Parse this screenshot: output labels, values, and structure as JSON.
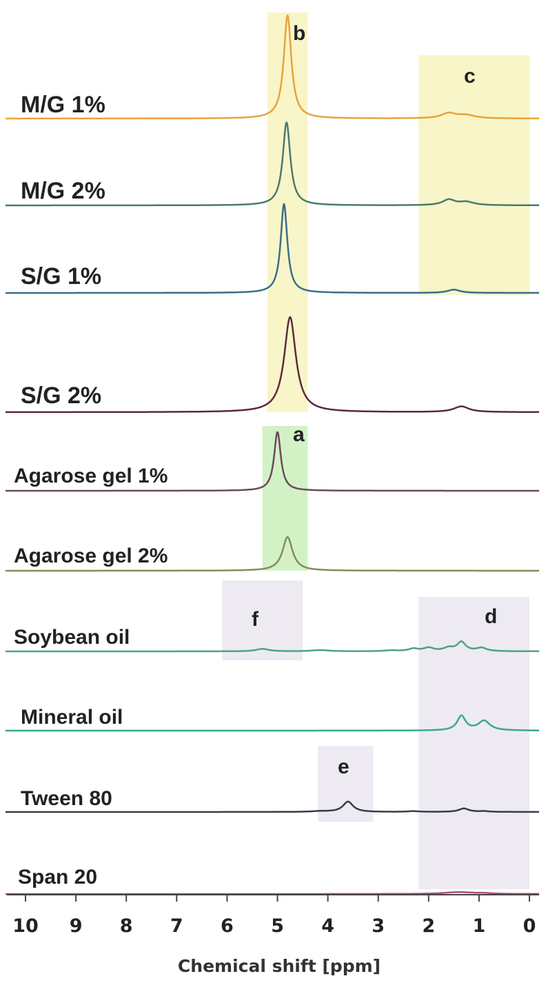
{
  "chart_data": {
    "type": "line",
    "xlabel": "Chemical shift [ppm]",
    "xlim": [
      10,
      0
    ],
    "x_reversed": true,
    "x_ticks": [
      "10",
      "9",
      "8",
      "7",
      "6",
      "5",
      "4",
      "3",
      "2",
      "1",
      "0"
    ],
    "grid": false,
    "series": [
      {
        "name": "M/G 1%",
        "color": "#E8A33A",
        "peaks": [
          {
            "ppm": 4.8,
            "height": 1.0,
            "width": 0.09
          },
          {
            "ppm": 1.6,
            "height": 0.05,
            "width": 0.18
          },
          {
            "ppm": 1.25,
            "height": 0.03,
            "width": 0.2
          }
        ]
      },
      {
        "name": "M/G 2%",
        "color": "#4A7A6E",
        "peaks": [
          {
            "ppm": 4.82,
            "height": 0.9,
            "width": 0.09
          },
          {
            "ppm": 1.6,
            "height": 0.06,
            "width": 0.15
          },
          {
            "ppm": 1.25,
            "height": 0.035,
            "width": 0.18
          }
        ]
      },
      {
        "name": "S/G 1%",
        "color": "#3A6E88",
        "peaks": [
          {
            "ppm": 4.87,
            "height": 0.95,
            "width": 0.08
          },
          {
            "ppm": 1.5,
            "height": 0.035,
            "width": 0.15
          }
        ]
      },
      {
        "name": "S/G 2%",
        "color": "#5A2A3A",
        "peaks": [
          {
            "ppm": 4.75,
            "height": 1.0,
            "width": 0.14
          },
          {
            "ppm": 1.35,
            "height": 0.06,
            "width": 0.18
          }
        ]
      },
      {
        "name": "Agarose gel 1%",
        "color": "#6A4A5A",
        "peaks": [
          {
            "ppm": 5.0,
            "height": 0.95,
            "width": 0.08
          }
        ]
      },
      {
        "name": "Agarose gel 2%",
        "color": "#8A8A5A",
        "peaks": [
          {
            "ppm": 4.8,
            "height": 0.7,
            "width": 0.12
          }
        ]
      },
      {
        "name": "Soybean oil",
        "color": "#4EA47A",
        "peaks": [
          {
            "ppm": 5.3,
            "height": 0.06,
            "width": 0.15
          },
          {
            "ppm": 4.15,
            "height": 0.03,
            "width": 0.2
          },
          {
            "ppm": 2.75,
            "height": 0.02,
            "width": 0.15
          },
          {
            "ppm": 2.3,
            "height": 0.06,
            "width": 0.12
          },
          {
            "ppm": 2.0,
            "height": 0.08,
            "width": 0.12
          },
          {
            "ppm": 1.6,
            "height": 0.08,
            "width": 0.12
          },
          {
            "ppm": 1.35,
            "height": 0.22,
            "width": 0.1
          },
          {
            "ppm": 0.95,
            "height": 0.08,
            "width": 0.12
          }
        ]
      },
      {
        "name": "Mineral oil",
        "color": "#3AA890",
        "peaks": [
          {
            "ppm": 1.35,
            "height": 0.3,
            "width": 0.1
          },
          {
            "ppm": 0.9,
            "height": 0.2,
            "width": 0.14
          }
        ]
      },
      {
        "name": "Tween 80",
        "color": "#3A3A4A",
        "peaks": [
          {
            "ppm": 3.6,
            "height": 0.3,
            "width": 0.12
          },
          {
            "ppm": 4.15,
            "height": 0.02,
            "width": 0.2
          },
          {
            "ppm": 2.3,
            "height": 0.02,
            "width": 0.15
          },
          {
            "ppm": 1.3,
            "height": 0.1,
            "width": 0.12
          },
          {
            "ppm": 0.9,
            "height": 0.02,
            "width": 0.12
          }
        ]
      },
      {
        "name": "Span 20",
        "color": "#B04A7A",
        "peaks": [
          {
            "ppm": 1.4,
            "height": 0.06,
            "width": 0.35
          },
          {
            "ppm": 0.9,
            "height": 0.02,
            "width": 0.2
          }
        ]
      }
    ],
    "highlight_regions": [
      {
        "label": "b",
        "ppm_range": [
          4.4,
          5.2
        ],
        "color": "#F8F5C8"
      },
      {
        "label": "c",
        "ppm_range": [
          0.0,
          2.2
        ],
        "color": "#F8F5C8"
      },
      {
        "label": "a",
        "ppm_range": [
          4.4,
          5.3
        ],
        "color": "#D2F2C6"
      },
      {
        "label": "f",
        "ppm_range": [
          4.5,
          6.1
        ],
        "color": "#EDEAF2"
      },
      {
        "label": "d",
        "ppm_range": [
          0.0,
          2.2
        ],
        "color": "#EDEAF2"
      },
      {
        "label": "e",
        "ppm_range": [
          3.1,
          4.2
        ],
        "color": "#EDEAF2"
      }
    ]
  }
}
